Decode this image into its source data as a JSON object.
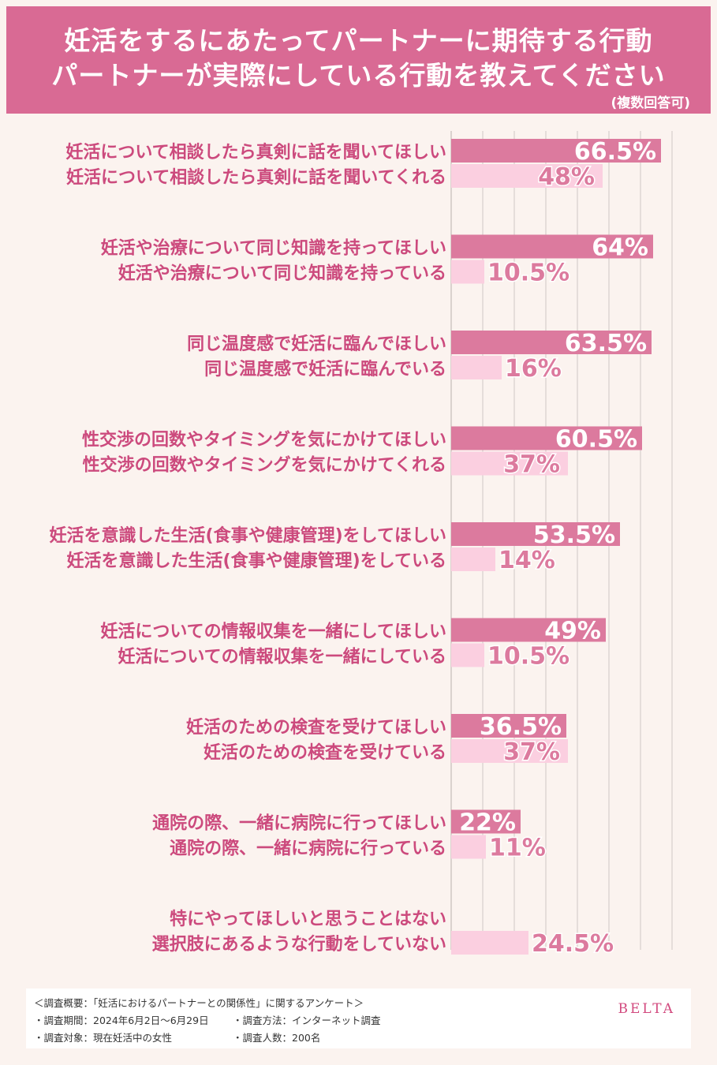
{
  "header": {
    "title_line1": "妊活をするにあたってパートナーに期待する行動",
    "title_line2": "パートナーが実際にしている行動を教えてください",
    "note": "(複数回答可)"
  },
  "colors": {
    "header_bg": "#d96a94",
    "expect_bar": "#dc7a9e",
    "actual_bar": "#fbcfe0",
    "label_text": "#cc4a7d",
    "background": "#fbf3ef"
  },
  "chart_data": {
    "type": "bar",
    "orientation": "horizontal",
    "categories": [
      [
        "妊活について相談したら真剣に話を聞いてほしい",
        "妊活について相談したら真剣に話を聞いてくれる"
      ],
      [
        "妊活や治療について同じ知識を持ってほしい",
        "妊活や治療について同じ知識を持っている"
      ],
      [
        "同じ温度感で妊活に臨んでほしい",
        "同じ温度感で妊活に臨んでいる"
      ],
      [
        "性交渉の回数やタイミングを気にかけてほしい",
        "性交渉の回数やタイミングを気にかけてくれる"
      ],
      [
        "妊活を意識した生活(食事や健康管理)をしてほしい",
        "妊活を意識した生活(食事や健康管理)をしている"
      ],
      [
        "妊活についての情報収集を一緒にしてほしい",
        "妊活についての情報収集を一緒にしている"
      ],
      [
        "妊活のための検査を受けてほしい",
        "妊活のための検査を受けている"
      ],
      [
        "通院の際、一緒に病院に行ってほしい",
        "通院の際、一緒に病院に行っている"
      ],
      [
        "特にやってほしいと思うことはない",
        "選択肢にあるような行動をしていない"
      ]
    ],
    "series": [
      {
        "values": [
          66.5,
          64,
          63.5,
          60.5,
          53.5,
          49,
          36.5,
          22,
          null
        ],
        "labels": [
          "66.5%",
          "64%",
          "63.5%",
          "60.5%",
          "53.5%",
          "49%",
          "36.5%",
          "22%",
          ""
        ]
      },
      {
        "values": [
          48,
          10.5,
          16,
          37,
          14,
          10.5,
          37,
          11,
          24.5
        ],
        "labels": [
          "48%",
          "10.5%",
          "16%",
          "37%",
          "14%",
          "10.5%",
          "37%",
          "11%",
          "24.5%"
        ]
      }
    ],
    "xlim": [
      0,
      70
    ],
    "grid": true
  },
  "footer": {
    "overview": "＜調査概要：「妊活におけるパートナーとの関係性」に関するアンケート＞",
    "period": "・調査期間：2024年6月2日〜6月29日",
    "method": "・調査方法：インターネット調査",
    "target": "・調査対象：現在妊活中の女性",
    "count": "・調査人数：200名",
    "brand": "BELTA"
  }
}
